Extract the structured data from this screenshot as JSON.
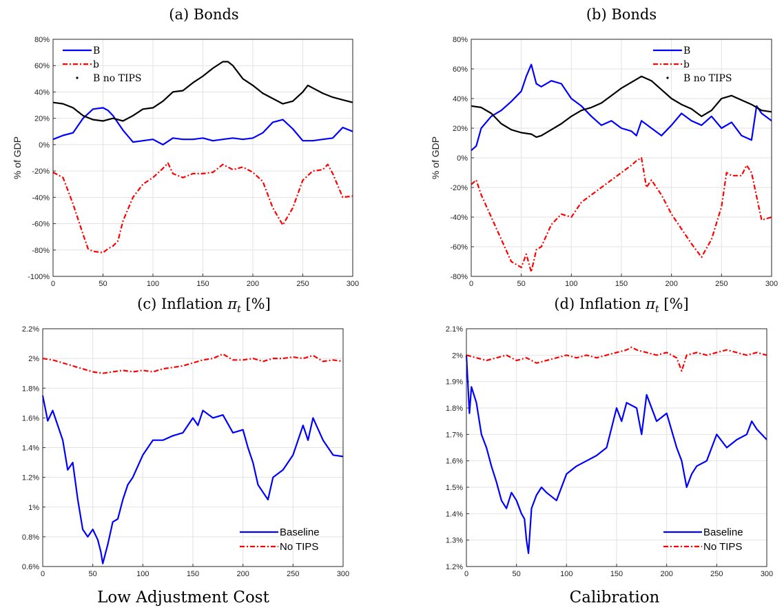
{
  "colors": {
    "blue": "#0000ff",
    "red": "#ff0000",
    "black": "#000000",
    "grid": "#e2e2e2"
  },
  "footers": [
    "Low Adjustment Cost",
    "Calibration"
  ],
  "chart_data": [
    {
      "type": "line",
      "title": "(a) Bonds",
      "ylabel": "% of GDP",
      "xlim": [
        0,
        300
      ],
      "ylim": [
        -100,
        80
      ],
      "xticks": [
        0,
        50,
        100,
        150,
        200,
        250,
        300
      ],
      "yticks": [
        -100,
        -80,
        -60,
        -40,
        -20,
        0,
        20,
        40,
        60,
        80
      ],
      "yticklabels": [
        "-100%",
        "-80%",
        "-60%",
        "-40%",
        "-20%",
        "0%",
        "20%",
        "40%",
        "60%",
        "80%"
      ],
      "grid": true,
      "legend": "top-left",
      "series": [
        {
          "name": "B",
          "style": "solid",
          "color": "blue",
          "x": [
            0,
            10,
            20,
            30,
            40,
            50,
            55,
            60,
            70,
            80,
            90,
            100,
            110,
            120,
            130,
            140,
            150,
            160,
            170,
            180,
            190,
            200,
            210,
            220,
            230,
            240,
            250,
            260,
            270,
            280,
            290,
            300
          ],
          "y": [
            4,
            7,
            9,
            20,
            27,
            28,
            26,
            22,
            11,
            2,
            3,
            4,
            0,
            5,
            4,
            4,
            5,
            3,
            4,
            5,
            4,
            5,
            9,
            17,
            19,
            12,
            3,
            3,
            4,
            5,
            13,
            10
          ]
        },
        {
          "name": "b",
          "style": "dashdot",
          "color": "red",
          "x": [
            0,
            10,
            20,
            30,
            35,
            40,
            50,
            55,
            60,
            65,
            70,
            80,
            90,
            100,
            110,
            115,
            120,
            130,
            140,
            150,
            160,
            170,
            180,
            190,
            200,
            210,
            220,
            230,
            240,
            250,
            260,
            270,
            275,
            280,
            290,
            300
          ],
          "y": [
            -21,
            -25,
            -45,
            -68,
            -79,
            -81,
            -82,
            -79,
            -77,
            -73,
            -58,
            -40,
            -30,
            -25,
            -18,
            -14,
            -22,
            -25,
            -22,
            -22,
            -21,
            -15,
            -19,
            -17,
            -21,
            -28,
            -48,
            -61,
            -48,
            -27,
            -20,
            -19,
            -15,
            -22,
            -40,
            -39
          ]
        },
        {
          "name": "B no TIPS",
          "style": "solid",
          "color": "black",
          "x": [
            0,
            10,
            20,
            30,
            40,
            50,
            55,
            60,
            70,
            80,
            90,
            100,
            110,
            120,
            130,
            140,
            150,
            160,
            170,
            175,
            180,
            190,
            200,
            210,
            220,
            230,
            240,
            250,
            255,
            260,
            270,
            280,
            290,
            300
          ],
          "y": [
            32,
            31,
            28,
            22,
            19,
            18,
            19,
            20,
            18,
            22,
            27,
            28,
            33,
            40,
            41,
            47,
            52,
            58,
            63,
            63,
            60,
            50,
            45,
            39,
            35,
            31,
            33,
            40,
            45,
            43,
            39,
            36,
            34,
            32
          ]
        }
      ]
    },
    {
      "type": "line",
      "title": "(b) Bonds",
      "ylabel": "% of GDP",
      "xlim": [
        0,
        300
      ],
      "ylim": [
        -80,
        80
      ],
      "xticks": [
        0,
        50,
        100,
        150,
        200,
        250,
        300
      ],
      "yticks": [
        -80,
        -60,
        -40,
        -20,
        0,
        20,
        40,
        60,
        80
      ],
      "yticklabels": [
        "-80%",
        "-60%",
        "-40%",
        "-20%",
        "0%",
        "20%",
        "40%",
        "60%",
        "80%"
      ],
      "grid": true,
      "legend": "top-right",
      "series": [
        {
          "name": "B",
          "style": "solid",
          "color": "blue",
          "x": [
            0,
            5,
            10,
            20,
            30,
            40,
            50,
            55,
            60,
            65,
            70,
            80,
            90,
            100,
            110,
            120,
            130,
            140,
            150,
            160,
            165,
            170,
            180,
            190,
            200,
            210,
            220,
            230,
            240,
            250,
            260,
            270,
            280,
            285,
            290,
            300
          ],
          "y": [
            5,
            8,
            20,
            28,
            32,
            38,
            45,
            55,
            63,
            50,
            48,
            52,
            50,
            40,
            35,
            28,
            22,
            25,
            20,
            18,
            15,
            25,
            20,
            15,
            22,
            30,
            25,
            22,
            28,
            20,
            24,
            15,
            12,
            35,
            30,
            25
          ]
        },
        {
          "name": "b",
          "style": "dashdot",
          "color": "red",
          "x": [
            0,
            5,
            10,
            20,
            30,
            40,
            50,
            55,
            60,
            65,
            70,
            80,
            90,
            100,
            110,
            120,
            130,
            140,
            150,
            160,
            165,
            170,
            175,
            180,
            190,
            200,
            210,
            220,
            230,
            240,
            250,
            255,
            260,
            270,
            275,
            280,
            290,
            300
          ],
          "y": [
            -18,
            -15,
            -25,
            -40,
            -55,
            -70,
            -74,
            -65,
            -77,
            -62,
            -60,
            -45,
            -38,
            -40,
            -30,
            -25,
            -20,
            -15,
            -10,
            -5,
            -2,
            0,
            -20,
            -15,
            -25,
            -38,
            -48,
            -58,
            -67,
            -55,
            -33,
            -10,
            -12,
            -12,
            -5,
            -10,
            -42,
            -40
          ]
        },
        {
          "name": "B no TIPS",
          "style": "solid",
          "color": "black",
          "x": [
            0,
            10,
            20,
            30,
            40,
            50,
            60,
            65,
            70,
            80,
            90,
            100,
            110,
            120,
            130,
            140,
            150,
            160,
            170,
            180,
            190,
            200,
            210,
            220,
            230,
            240,
            250,
            260,
            270,
            280,
            290,
            300
          ],
          "y": [
            35,
            34,
            30,
            23,
            19,
            17,
            16,
            14,
            15,
            19,
            23,
            28,
            32,
            34,
            37,
            42,
            47,
            51,
            55,
            52,
            46,
            40,
            36,
            33,
            28,
            32,
            40,
            42,
            39,
            36,
            32,
            31
          ]
        }
      ]
    },
    {
      "type": "line",
      "title": "(c) Inflation",
      "ylabel": "",
      "xlim": [
        0,
        300
      ],
      "ylim": [
        0.6,
        2.2
      ],
      "xticks": [
        0,
        50,
        100,
        150,
        200,
        250,
        300
      ],
      "yticks": [
        0.6,
        0.8,
        1.0,
        1.2,
        1.4,
        1.6,
        1.8,
        2.0,
        2.2
      ],
      "yticklabels": [
        "0.6%",
        "0.8%",
        "1%",
        "1.2%",
        "1.4%",
        "1.6%",
        "1.8%",
        "2%",
        "2.2%"
      ],
      "grid": true,
      "legend": "bottom-right",
      "series": [
        {
          "name": "Baseline",
          "style": "solid",
          "color": "blue",
          "x": [
            0,
            5,
            10,
            20,
            25,
            30,
            35,
            40,
            45,
            50,
            55,
            58,
            60,
            65,
            70,
            75,
            80,
            85,
            90,
            100,
            110,
            120,
            130,
            140,
            150,
            155,
            160,
            170,
            180,
            190,
            200,
            205,
            210,
            215,
            220,
            225,
            230,
            240,
            250,
            260,
            265,
            270,
            280,
            290,
            300
          ],
          "y": [
            1.75,
            1.58,
            1.65,
            1.45,
            1.25,
            1.3,
            1.05,
            0.85,
            0.8,
            0.85,
            0.78,
            0.7,
            0.62,
            0.75,
            0.9,
            0.92,
            1.05,
            1.15,
            1.2,
            1.35,
            1.45,
            1.45,
            1.48,
            1.5,
            1.6,
            1.55,
            1.65,
            1.6,
            1.62,
            1.5,
            1.52,
            1.4,
            1.3,
            1.15,
            1.1,
            1.05,
            1.2,
            1.25,
            1.35,
            1.55,
            1.45,
            1.6,
            1.45,
            1.35,
            1.34
          ]
        },
        {
          "name": "No TIPS",
          "style": "dashdot",
          "color": "red",
          "x": [
            0,
            10,
            20,
            30,
            40,
            50,
            60,
            70,
            80,
            90,
            100,
            110,
            120,
            130,
            140,
            150,
            160,
            170,
            180,
            190,
            200,
            210,
            220,
            230,
            240,
            250,
            260,
            270,
            280,
            290,
            300
          ],
          "y": [
            2.0,
            1.99,
            1.97,
            1.95,
            1.93,
            1.91,
            1.9,
            1.91,
            1.92,
            1.91,
            1.92,
            1.91,
            1.93,
            1.94,
            1.95,
            1.97,
            1.99,
            2.0,
            2.03,
            1.99,
            1.99,
            2.0,
            1.98,
            2.0,
            2.0,
            2.01,
            2.0,
            2.02,
            1.98,
            1.99,
            1.98
          ]
        }
      ]
    },
    {
      "type": "line",
      "title": "(d) Inflation",
      "ylabel": "",
      "xlim": [
        0,
        300
      ],
      "ylim": [
        1.2,
        2.1
      ],
      "xticks": [
        0,
        50,
        100,
        150,
        200,
        250,
        300
      ],
      "yticks": [
        1.2,
        1.3,
        1.4,
        1.5,
        1.6,
        1.7,
        1.8,
        1.9,
        2.0,
        2.1
      ],
      "yticklabels": [
        "1.2%",
        "1.3%",
        "1.4%",
        "1.5%",
        "1.6%",
        "1.7%",
        "1.8%",
        "1.9%",
        "2%",
        "2.1%"
      ],
      "grid": true,
      "legend": "bottom-right",
      "series": [
        {
          "name": "Baseline",
          "style": "solid",
          "color": "blue",
          "x": [
            0,
            3,
            5,
            10,
            15,
            20,
            25,
            30,
            35,
            40,
            45,
            50,
            55,
            58,
            60,
            62,
            65,
            70,
            75,
            80,
            90,
            100,
            110,
            120,
            130,
            140,
            150,
            155,
            160,
            170,
            175,
            180,
            190,
            200,
            210,
            215,
            220,
            225,
            230,
            240,
            250,
            260,
            270,
            280,
            285,
            290,
            300
          ],
          "y": [
            2.0,
            1.78,
            1.88,
            1.82,
            1.7,
            1.65,
            1.58,
            1.52,
            1.45,
            1.42,
            1.48,
            1.45,
            1.4,
            1.38,
            1.3,
            1.25,
            1.42,
            1.47,
            1.5,
            1.48,
            1.45,
            1.55,
            1.58,
            1.6,
            1.62,
            1.65,
            1.8,
            1.75,
            1.82,
            1.8,
            1.7,
            1.85,
            1.75,
            1.78,
            1.65,
            1.6,
            1.5,
            1.55,
            1.58,
            1.6,
            1.7,
            1.65,
            1.68,
            1.7,
            1.75,
            1.72,
            1.68
          ]
        },
        {
          "name": "No TIPS",
          "style": "dashdot",
          "color": "red",
          "x": [
            0,
            10,
            20,
            30,
            40,
            50,
            60,
            70,
            80,
            90,
            100,
            110,
            120,
            130,
            140,
            150,
            160,
            165,
            170,
            180,
            190,
            200,
            210,
            215,
            220,
            230,
            240,
            250,
            260,
            270,
            280,
            290,
            300
          ],
          "y": [
            2.0,
            1.99,
            1.98,
            1.99,
            2.0,
            1.98,
            1.99,
            1.97,
            1.98,
            1.99,
            2.0,
            1.99,
            2.0,
            1.99,
            2.0,
            2.01,
            2.02,
            2.03,
            2.02,
            2.01,
            2.0,
            2.01,
            1.99,
            1.94,
            2.0,
            2.01,
            2.0,
            2.01,
            2.02,
            2.01,
            2.0,
            2.01,
            2.0
          ]
        }
      ]
    }
  ]
}
